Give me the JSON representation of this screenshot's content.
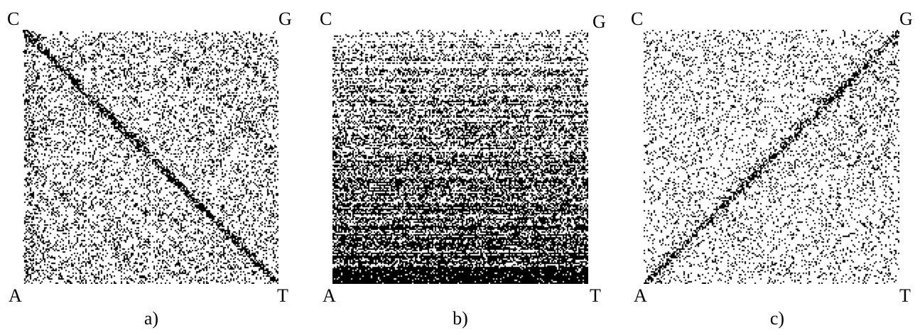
{
  "panels": [
    {
      "caption": "a)",
      "corners": {
        "top_left": "C",
        "top_right": "G",
        "bottom_left": "A",
        "bottom_right": "T"
      },
      "pattern": "sierpinski-like nested squares with descending diagonal"
    },
    {
      "caption": "b)",
      "corners": {
        "top_left": "C",
        "top_right": "G",
        "bottom_left": "A",
        "bottom_right": "T"
      },
      "pattern": "horizontal banding, density increasing toward bottom"
    },
    {
      "caption": "c)",
      "corners": {
        "top_left": "C",
        "top_right": "G",
        "bottom_left": "A",
        "bottom_right": "T"
      },
      "pattern": "sparse field with ascending diagonal"
    }
  ],
  "colors": {
    "dots": "#000000",
    "background": "#ffffff"
  }
}
